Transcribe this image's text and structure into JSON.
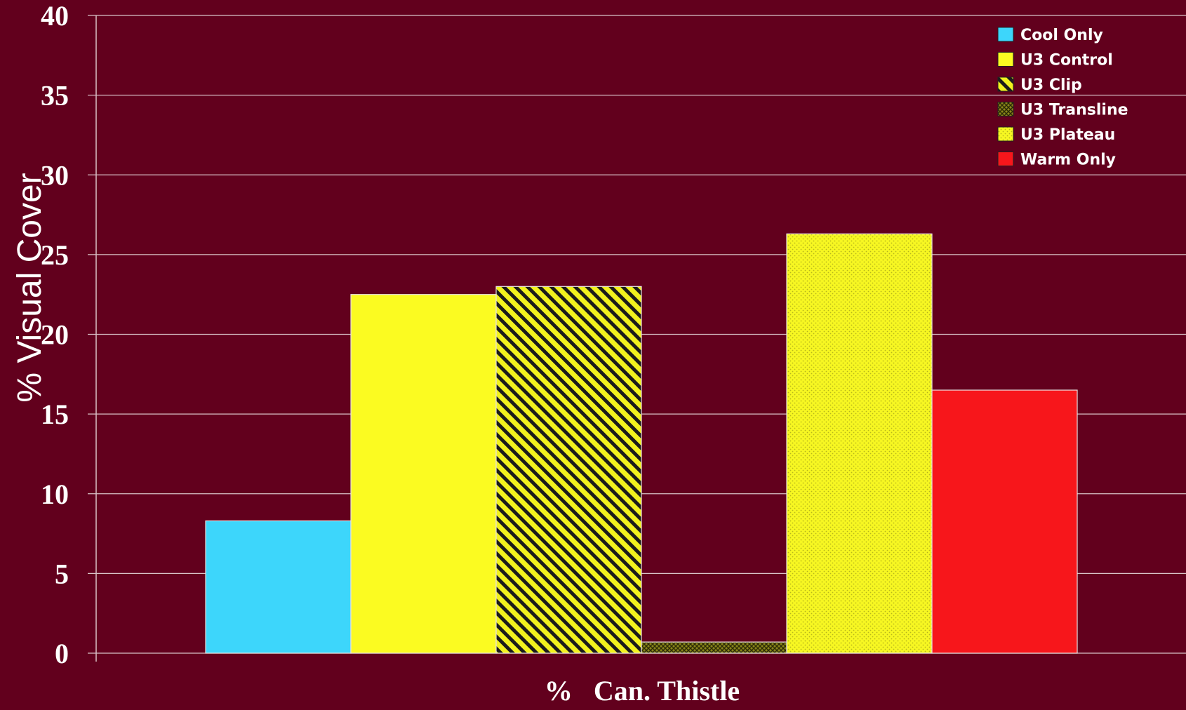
{
  "chart_data": {
    "type": "bar",
    "title": "",
    "xlabel": "%   Can. Thistle",
    "ylabel": "% Visual Cover",
    "ylim": [
      0,
      40
    ],
    "yticks": [
      0,
      5,
      10,
      15,
      20,
      25,
      30,
      35,
      40
    ],
    "categories": [
      "%   Can. Thistle"
    ],
    "grid": true,
    "legend_position": "top-right",
    "background_color": "#62001d",
    "series": [
      {
        "name": "Cool Only",
        "values": [
          8.3
        ],
        "color": "#3dd6fb",
        "pattern": "solid"
      },
      {
        "name": "U3 Control",
        "values": [
          22.5
        ],
        "color": "#fbfb21",
        "pattern": "solid"
      },
      {
        "name": "U3 Clip",
        "values": [
          23.0
        ],
        "color": "#f2f21e",
        "pattern": "diagonal-stripes"
      },
      {
        "name": "U3 Transline",
        "values": [
          0.7
        ],
        "color": "#7e7a16",
        "pattern": "crosshatch"
      },
      {
        "name": "U3 Plateau",
        "values": [
          26.3
        ],
        "color": "#f7f722",
        "pattern": "dots"
      },
      {
        "name": "Warm Only",
        "values": [
          16.5
        ],
        "color": "#f7161b",
        "pattern": "solid"
      }
    ]
  }
}
